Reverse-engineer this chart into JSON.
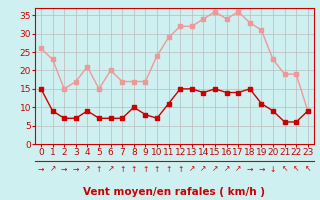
{
  "hours": [
    0,
    1,
    2,
    3,
    4,
    5,
    6,
    7,
    8,
    9,
    10,
    11,
    12,
    13,
    14,
    15,
    16,
    17,
    18,
    19,
    20,
    21,
    22,
    23
  ],
  "wind_avg": [
    15,
    9,
    7,
    7,
    9,
    7,
    7,
    7,
    10,
    8,
    7,
    11,
    15,
    15,
    14,
    15,
    14,
    14,
    15,
    11,
    9,
    6,
    6,
    9
  ],
  "wind_gust": [
    26,
    23,
    15,
    17,
    21,
    15,
    20,
    17,
    17,
    17,
    24,
    29,
    32,
    32,
    34,
    36,
    34,
    36,
    33,
    31,
    23,
    19,
    19,
    9
  ],
  "arrows": [
    "→",
    "↗",
    "→",
    "→",
    "↗",
    "↑",
    "↗",
    "↑",
    "↑",
    "↑",
    "↑",
    "↑",
    "↑",
    "↗",
    "↗",
    "↗",
    "↗",
    "↗",
    "→",
    "→",
    "↓",
    "↖",
    "↖",
    "↖"
  ],
  "xlabel": "Vent moyen/en rafales ( km/h )",
  "ylim": [
    0,
    37
  ],
  "yticks": [
    0,
    5,
    10,
    15,
    20,
    25,
    30,
    35
  ],
  "bg_color": "#cff0f0",
  "grid_color": "#bbbbbb",
  "line_avg_color": "#cc0000",
  "line_gust_color": "#ee9999",
  "marker_size": 2.5,
  "line_width": 1.0,
  "xlabel_fontsize": 7.5,
  "tick_fontsize": 6.5,
  "arrow_fontsize": 5.5
}
